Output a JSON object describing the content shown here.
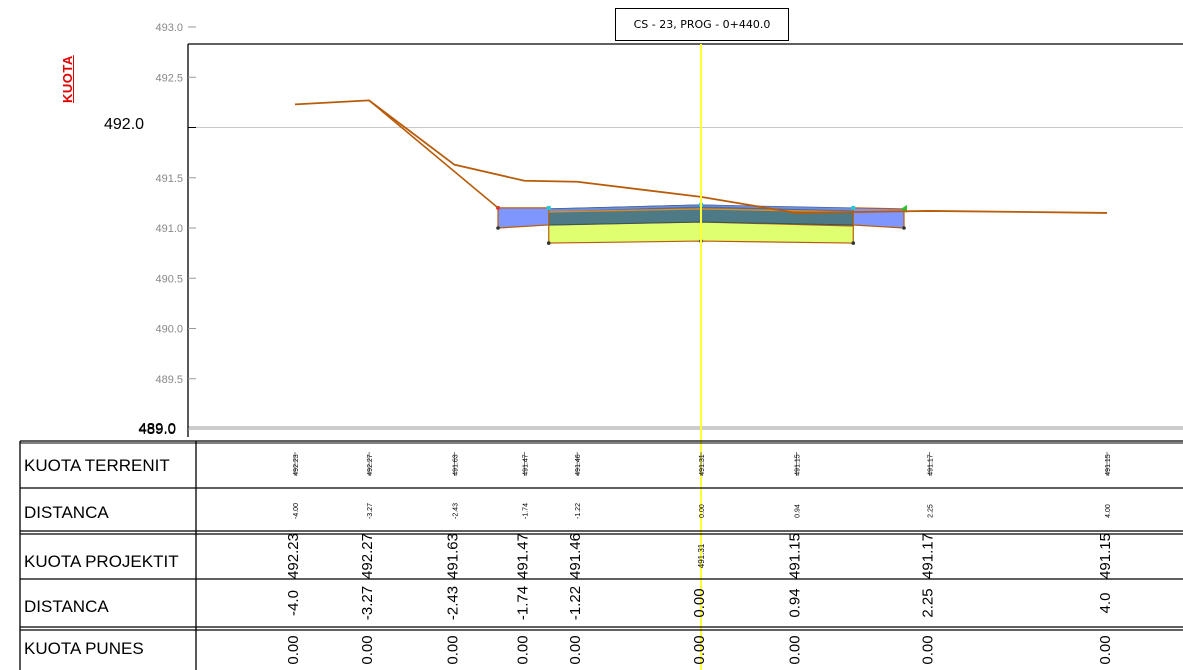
{
  "title": "CS - 23, PROG - 0+440.0",
  "y_axis_label": "KUOTA",
  "y_axis_ticks": [
    "493.0",
    "492.5",
    "492.0",
    "491.5",
    "491.0",
    "490.5",
    "490.0",
    "489.5",
    "489.0"
  ],
  "y_axis_major_tick": "492.0",
  "row_labels": {
    "kuota_terrenit": "KUOTA TERRENIT",
    "distanca_1": "DISTANCA",
    "kuota_projektit": "KUOTA PROJEKTIT",
    "distanca_2": "DISTANCA",
    "kuota_punes": "KUOTA PUNES"
  },
  "colors": {
    "terrain": "#b85c0a",
    "axis_line": "#ffff33",
    "base_layer": "#dfff70",
    "asphalt_layer": "#4d7a85",
    "shoulder": "#7f96ff",
    "kuota_label": "#e00000"
  },
  "chart_data": {
    "type": "cross-section",
    "title": "CS - 23, PROG - 0+440.0",
    "ylabel": "KUOTA",
    "ylim": [
      489.0,
      493.0
    ],
    "terrain": [
      {
        "offset": -4.0,
        "elevation": 492.23
      },
      {
        "offset": -3.27,
        "elevation": 492.27
      },
      {
        "offset": -2.43,
        "elevation": 491.63
      },
      {
        "offset": -1.74,
        "elevation": 491.47
      },
      {
        "offset": -1.22,
        "elevation": 491.46
      },
      {
        "offset": 0.0,
        "elevation": 491.31
      },
      {
        "offset": 0.94,
        "elevation": 491.15
      },
      {
        "offset": 2.25,
        "elevation": 491.17
      },
      {
        "offset": 4.0,
        "elevation": 491.15
      }
    ],
    "table": {
      "kuota_terrenit": [
        "492.23",
        "492.27",
        "491.63",
        "491.47",
        "491.46",
        "491.31",
        "491.15",
        "491.17",
        "491.15"
      ],
      "distanca_1": [
        "-4.00",
        "-3.27",
        "-2.43",
        "-1.74",
        "-1.22",
        "0.00",
        "0.94",
        "2.25",
        "4.00"
      ],
      "kuota_projektit": [
        "492.23",
        "492.27",
        "491.63",
        "491.47",
        "491.46",
        "491.31",
        "491.15",
        "491.17",
        "491.15"
      ],
      "distanca_2": [
        "-4.0",
        "-3.27",
        "-2.43",
        "-1.74",
        "-1.22",
        "0.00",
        "0.94",
        "2.25",
        "4.0"
      ],
      "kuota_punes": [
        "0.00",
        "0.00",
        "0.00",
        "0.00",
        "0.00",
        "0.00",
        "0.00",
        "0.00",
        "0.00"
      ],
      "kuota_projektit_axis": "491.31"
    }
  }
}
